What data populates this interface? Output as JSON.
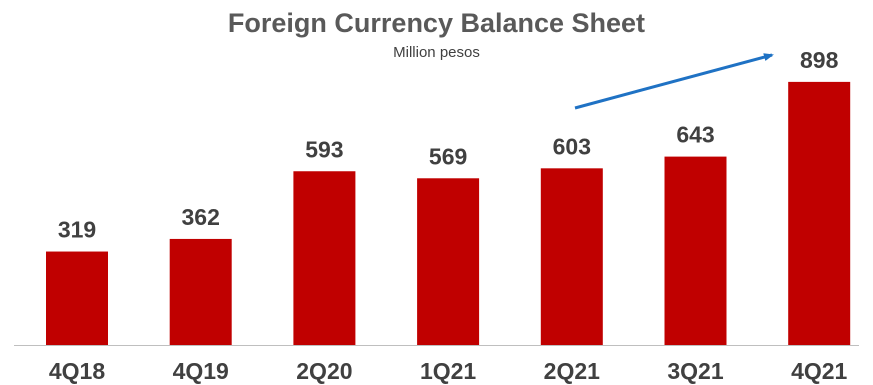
{
  "chart_data": {
    "type": "bar",
    "title": "Foreign Currency Balance Sheet",
    "subtitle": "Million pesos",
    "categories": [
      "4Q18",
      "4Q19",
      "2Q20",
      "1Q21",
      "2Q21",
      "3Q21",
      "4Q21"
    ],
    "values": [
      319,
      362,
      593,
      569,
      603,
      643,
      898
    ],
    "data_labels": [
      "319",
      "362",
      "593",
      "569",
      "603",
      "643",
      "898"
    ],
    "ylim": [
      0,
      1000
    ],
    "grid": false,
    "legend": "none",
    "annotation": "trend-arrow 2Q21 to 4Q21",
    "colors": {
      "bar": "#C00000",
      "arrow": "#1F72C4",
      "label": "#404040",
      "baseline": "#BFBFBF"
    }
  }
}
